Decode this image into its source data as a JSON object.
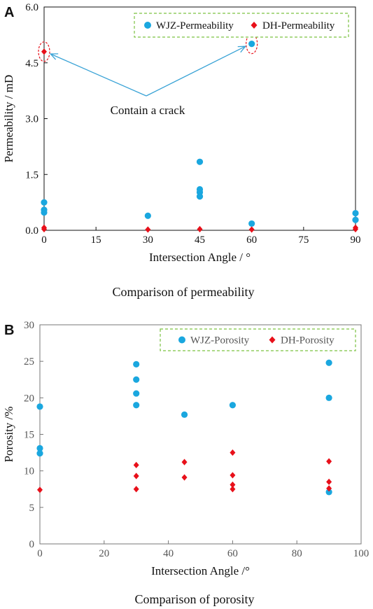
{
  "colors": {
    "wjz": "#1aa7df",
    "dh": "#e8101a",
    "arrow": "#3aa3d6",
    "legend_border": "#7cc242",
    "annotation_ellipse": "#e8101a",
    "tick_text_a": "#111111",
    "tick_text_b": "#555555"
  },
  "chart_data": [
    {
      "panel": "A",
      "type": "scatter",
      "caption": "Comparison of permeability",
      "xlabel": "Intersection Angle / °",
      "ylabel": "Permeability / mD",
      "xlim": [
        0,
        90
      ],
      "ylim": [
        0,
        6.0
      ],
      "xticks": [
        0,
        15,
        30,
        45,
        60,
        75,
        90
      ],
      "yticks": [
        "0.0",
        "1.5",
        "3.0",
        "4.5",
        "6.0"
      ],
      "legend_position": "top-right",
      "series": [
        {
          "name": "WJZ-Permeability",
          "marker": "circle",
          "points": [
            [
              0,
              0.75
            ],
            [
              0,
              0.55
            ],
            [
              0,
              0.48
            ],
            [
              30,
              0.39
            ],
            [
              45,
              1.84
            ],
            [
              45,
              1.1
            ],
            [
              45,
              1.02
            ],
            [
              45,
              0.91
            ],
            [
              60,
              5.01
            ],
            [
              60,
              0.18
            ],
            [
              90,
              0.46
            ],
            [
              90,
              0.28
            ]
          ]
        },
        {
          "name": "DH-Permeability",
          "marker": "diamond",
          "points": [
            [
              0,
              4.8
            ],
            [
              0,
              0.07
            ],
            [
              0,
              0.03
            ],
            [
              30,
              0.02
            ],
            [
              45,
              0.03
            ],
            [
              60,
              0.02
            ],
            [
              90,
              0.07
            ],
            [
              90,
              0.03
            ]
          ]
        }
      ],
      "annotation": {
        "text": "Contain a crack",
        "targets": [
          [
            0,
            4.8
          ],
          [
            60,
            5.01
          ]
        ]
      }
    },
    {
      "panel": "B",
      "type": "scatter",
      "caption": "Comparison of porosity",
      "xlabel": "Intersection Angle /°",
      "ylabel": "Porosity /%",
      "xlim": [
        0,
        100
      ],
      "ylim": [
        0,
        30
      ],
      "xticks": [
        0,
        20,
        40,
        60,
        80,
        100
      ],
      "yticks": [
        "0",
        "5",
        "10",
        "15",
        "20",
        "25",
        "30"
      ],
      "legend_position": "top-right",
      "series": [
        {
          "name": "WJZ-Porosity",
          "marker": "circle",
          "points": [
            [
              0,
              18.8
            ],
            [
              0,
              13.1
            ],
            [
              0,
              12.4
            ],
            [
              30,
              24.6
            ],
            [
              30,
              22.5
            ],
            [
              30,
              20.6
            ],
            [
              30,
              19.0
            ],
            [
              45,
              17.7
            ],
            [
              60,
              19.0
            ],
            [
              90,
              24.8
            ],
            [
              90,
              20.0
            ],
            [
              90,
              7.1
            ]
          ]
        },
        {
          "name": "DH-Porosity",
          "marker": "diamond",
          "points": [
            [
              0,
              7.4
            ],
            [
              30,
              10.8
            ],
            [
              30,
              9.3
            ],
            [
              30,
              7.5
            ],
            [
              45,
              11.2
            ],
            [
              45,
              9.1
            ],
            [
              60,
              12.5
            ],
            [
              60,
              9.4
            ],
            [
              60,
              8.1
            ],
            [
              60,
              7.5
            ],
            [
              90,
              11.3
            ],
            [
              90,
              8.5
            ],
            [
              90,
              7.6
            ]
          ]
        }
      ]
    }
  ]
}
